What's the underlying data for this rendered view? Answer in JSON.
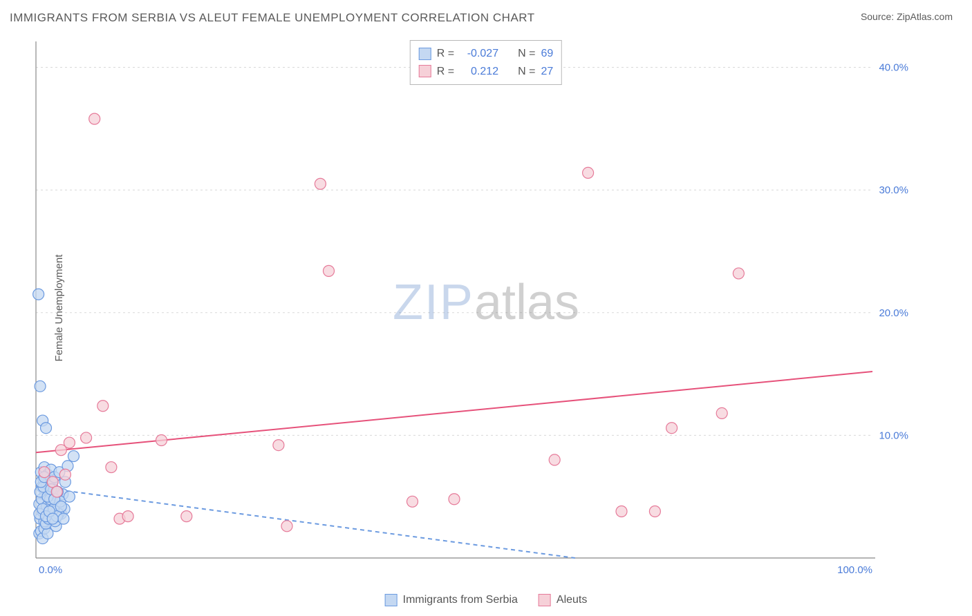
{
  "title": "IMMIGRANTS FROM SERBIA VS ALEUT FEMALE UNEMPLOYMENT CORRELATION CHART",
  "source_label": "Source: ",
  "source_name": "ZipAtlas.com",
  "ylabel": "Female Unemployment",
  "watermark": {
    "part1": "ZIP",
    "part2": "atlas"
  },
  "chart": {
    "type": "scatter",
    "background_color": "#ffffff",
    "grid_color": "#d8d8d8",
    "axis_color": "#888888",
    "tick_label_color": "#4a7bd8",
    "tick_fontsize": 15,
    "title_color": "#5a5a5a",
    "title_fontsize": 17,
    "xlim": [
      0,
      100
    ],
    "ylim": [
      0,
      42
    ],
    "y_gridlines": [
      10,
      20,
      30,
      40
    ],
    "ytick_labels": [
      "10.0%",
      "20.0%",
      "30.0%",
      "40.0%"
    ],
    "xtick_positions": [
      0,
      100
    ],
    "xtick_labels": [
      "0.0%",
      "100.0%"
    ],
    "marker_radius": 8,
    "marker_stroke_width": 1.2,
    "trendline_width": 2
  },
  "series": {
    "serbia": {
      "label": "Immigrants from Serbia",
      "fill": "#c4d8f2",
      "stroke": "#6b9ae0",
      "trend_color": "#6b9ae0",
      "trend_dash": "6,5",
      "points": [
        [
          0.4,
          2.0
        ],
        [
          0.6,
          2.2
        ],
        [
          0.8,
          1.6
        ],
        [
          1.0,
          2.4
        ],
        [
          1.2,
          3.0
        ],
        [
          1.4,
          2.0
        ],
        [
          2.0,
          5.0
        ],
        [
          2.2,
          3.4
        ],
        [
          1.6,
          4.0
        ],
        [
          1.8,
          4.6
        ],
        [
          2.4,
          2.6
        ],
        [
          0.7,
          5.8
        ],
        [
          0.9,
          6.4
        ],
        [
          1.1,
          5.2
        ],
        [
          1.3,
          6.0
        ],
        [
          1.5,
          4.8
        ],
        [
          1.7,
          5.4
        ],
        [
          1.9,
          6.2
        ],
        [
          2.1,
          5.6
        ],
        [
          2.3,
          4.4
        ],
        [
          2.5,
          5.0
        ],
        [
          2.7,
          4.2
        ],
        [
          0.5,
          3.2
        ],
        [
          0.8,
          3.8
        ],
        [
          1.0,
          3.0
        ],
        [
          1.2,
          2.8
        ],
        [
          3.0,
          3.6
        ],
        [
          3.2,
          5.2
        ],
        [
          3.4,
          4.0
        ],
        [
          0.6,
          7.0
        ],
        [
          1.0,
          7.4
        ],
        [
          1.4,
          6.8
        ],
        [
          1.8,
          7.2
        ],
        [
          2.2,
          6.6
        ],
        [
          0.4,
          4.4
        ],
        [
          0.7,
          4.8
        ],
        [
          1.5,
          3.2
        ],
        [
          1.9,
          3.8
        ],
        [
          2.3,
          3.0
        ],
        [
          2.7,
          3.6
        ],
        [
          0.5,
          5.4
        ],
        [
          0.9,
          5.8
        ],
        [
          1.3,
          4.2
        ],
        [
          1.7,
          4.8
        ],
        [
          2.1,
          4.0
        ],
        [
          2.5,
          3.4
        ],
        [
          2.9,
          4.6
        ],
        [
          3.3,
          3.2
        ],
        [
          0.6,
          6.2
        ],
        [
          1.0,
          6.6
        ],
        [
          1.4,
          5.0
        ],
        [
          1.8,
          5.6
        ],
        [
          2.2,
          4.8
        ],
        [
          2.6,
          5.4
        ],
        [
          3.0,
          4.2
        ],
        [
          0.4,
          3.6
        ],
        [
          0.8,
          4.0
        ],
        [
          1.2,
          3.4
        ],
        [
          1.6,
          3.8
        ],
        [
          2.0,
          3.2
        ],
        [
          0.5,
          14.0
        ],
        [
          0.8,
          11.2
        ],
        [
          1.2,
          10.6
        ],
        [
          0.3,
          21.5
        ],
        [
          2.8,
          7.0
        ],
        [
          3.5,
          6.2
        ],
        [
          4.0,
          5.0
        ],
        [
          4.5,
          8.3
        ],
        [
          3.8,
          7.5
        ]
      ],
      "trend": {
        "y_at_x0": 5.8,
        "y_at_x100": -3.2
      }
    },
    "aleuts": {
      "label": "Aleuts",
      "fill": "#f6d0d8",
      "stroke": "#e67a99",
      "trend_color": "#e6517a",
      "trend_dash": "",
      "points": [
        [
          1.0,
          7.0
        ],
        [
          2.0,
          6.2
        ],
        [
          3.0,
          8.8
        ],
        [
          4.0,
          9.4
        ],
        [
          6.0,
          9.8
        ],
        [
          8.0,
          12.4
        ],
        [
          9.0,
          7.4
        ],
        [
          10.0,
          3.2
        ],
        [
          11.0,
          3.4
        ],
        [
          15.0,
          9.6
        ],
        [
          18.0,
          3.4
        ],
        [
          29.0,
          9.2
        ],
        [
          30.0,
          2.6
        ],
        [
          34.0,
          30.5
        ],
        [
          35.0,
          23.4
        ],
        [
          45.0,
          4.6
        ],
        [
          50.0,
          4.8
        ],
        [
          62.0,
          8.0
        ],
        [
          66.0,
          31.4
        ],
        [
          70.0,
          3.8
        ],
        [
          74.0,
          3.8
        ],
        [
          76.0,
          10.6
        ],
        [
          82.0,
          11.8
        ],
        [
          84.0,
          23.2
        ],
        [
          7.0,
          35.8
        ],
        [
          2.5,
          5.4
        ],
        [
          3.5,
          6.8
        ]
      ],
      "trend": {
        "y_at_x0": 8.6,
        "y_at_x100": 15.2
      }
    }
  },
  "legend_top": {
    "rows": [
      {
        "swatch_fill": "#c4d8f2",
        "swatch_stroke": "#6b9ae0",
        "r_label": "R =",
        "r_value": "-0.027",
        "n_label": "N =",
        "n_value": "69"
      },
      {
        "swatch_fill": "#f6d0d8",
        "swatch_stroke": "#e67a99",
        "r_label": "R =",
        "r_value": "0.212",
        "n_label": "N =",
        "n_value": "27"
      }
    ]
  },
  "legend_bottom": {
    "items": [
      {
        "swatch_fill": "#c4d8f2",
        "swatch_stroke": "#6b9ae0",
        "label": "Immigrants from Serbia"
      },
      {
        "swatch_fill": "#f6d0d8",
        "swatch_stroke": "#e67a99",
        "label": "Aleuts"
      }
    ]
  }
}
